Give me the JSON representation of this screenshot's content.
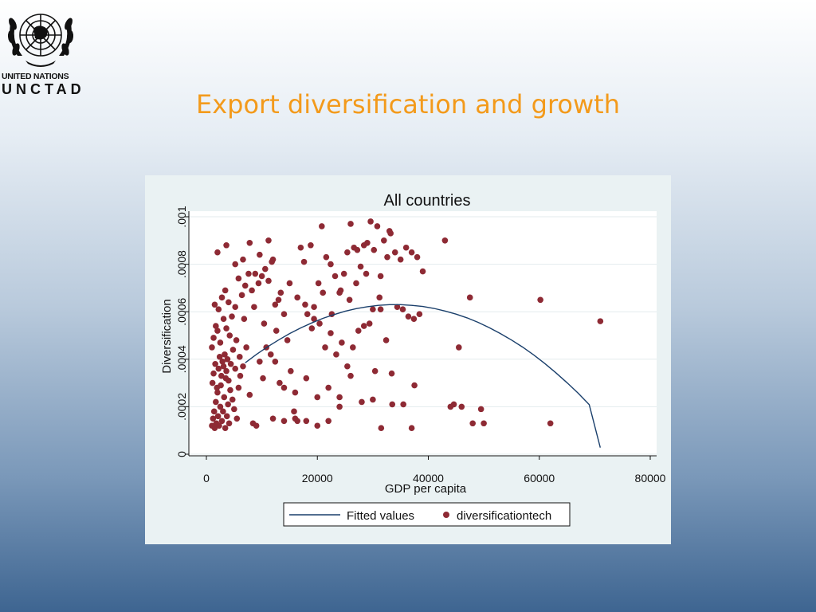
{
  "logo": {
    "org_name": "UNITED NATIONS",
    "acronym": "UNCTAD"
  },
  "slide": {
    "title": "Export diversification and growth"
  },
  "colors": {
    "title": "#f39a1b",
    "frame_bg": "#eaf2f3",
    "fitted_line": "#1a3f6b",
    "scatter": "#8e2a34"
  },
  "chart_data": {
    "type": "scatter",
    "title": "All countries",
    "xlabel": "GDP per capita",
    "ylabel": "Diversification",
    "xlim": [
      0,
      80000
    ],
    "ylim": [
      0,
      0.001
    ],
    "x_ticks": [
      0,
      20000,
      40000,
      60000,
      80000
    ],
    "x_tick_labels": [
      "0",
      "20000",
      "40000",
      "60000",
      "80000"
    ],
    "y_ticks": [
      0,
      0.0002,
      0.0004,
      0.0006,
      0.0008,
      0.001
    ],
    "y_tick_labels": [
      "0",
      ".0002",
      ".0004",
      ".0006",
      ".0008",
      ".001"
    ],
    "grid": "horizontal",
    "legend": {
      "position": "bottom",
      "labels": [
        "Fitted values",
        "diversificationtech"
      ]
    },
    "series": [
      {
        "name": "Fitted values",
        "kind": "line",
        "x": [
          7000,
          9000,
          11000,
          13000,
          15000,
          17000,
          19000,
          21000,
          23000,
          25000,
          27000,
          29000,
          31000,
          33000,
          35000,
          37000,
          39000,
          41000,
          43000,
          45000,
          47000,
          49000,
          51000,
          53000,
          55000,
          57000,
          59000,
          61000,
          63000,
          65000,
          67000,
          69000,
          71000
        ],
        "y": [
          0.000385,
          0.00042,
          0.000452,
          0.000481,
          0.000508,
          0.000532,
          0.000553,
          0.000572,
          0.000588,
          0.000602,
          0.000613,
          0.000621,
          0.000627,
          0.00063,
          0.00063,
          0.000627,
          0.000622,
          0.000614,
          0.000603,
          0.00059,
          0.000574,
          0.000555,
          0.000533,
          0.000508,
          0.000481,
          0.000451,
          0.000418,
          0.000382,
          0.000343,
          0.000301,
          0.000257,
          0.000209,
          2.8e-05
        ]
      },
      {
        "name": "diversificationtech",
        "kind": "scatter",
        "points": [
          [
            1000,
            0.00012
          ],
          [
            1200,
            0.00015
          ],
          [
            1400,
            0.00018
          ],
          [
            1500,
            0.00011
          ],
          [
            1700,
            0.00022
          ],
          [
            1800,
            0.00013
          ],
          [
            2000,
            0.00026
          ],
          [
            2100,
            0.00016
          ],
          [
            2300,
            0.00012
          ],
          [
            2500,
            0.0002
          ],
          [
            2600,
            0.00029
          ],
          [
            2800,
            0.00014
          ],
          [
            3000,
            0.00018
          ],
          [
            3200,
            0.00024
          ],
          [
            3400,
            0.00011
          ],
          [
            3500,
            0.00032
          ],
          [
            3700,
            0.00016
          ],
          [
            3900,
            0.00021
          ],
          [
            4100,
            0.00013
          ],
          [
            4300,
            0.00027
          ],
          [
            1100,
            0.0003
          ],
          [
            1300,
            0.00034
          ],
          [
            1600,
            0.00038
          ],
          [
            1900,
            0.00028
          ],
          [
            2200,
            0.00036
          ],
          [
            2400,
            0.00041
          ],
          [
            2700,
            0.00033
          ],
          [
            2900,
            0.00039
          ],
          [
            3100,
            0.00037
          ],
          [
            3300,
            0.00042
          ],
          [
            3600,
            0.00035
          ],
          [
            3800,
            0.0004
          ],
          [
            4000,
            0.00031
          ],
          [
            4400,
            0.00038
          ],
          [
            4700,
            0.00023
          ],
          [
            5000,
            0.00019
          ],
          [
            5200,
            0.00036
          ],
          [
            5500,
            0.00015
          ],
          [
            5800,
            0.00028
          ],
          [
            6100,
            0.00033
          ],
          [
            1000,
            0.00045
          ],
          [
            1300,
            0.00049
          ],
          [
            1700,
            0.00054
          ],
          [
            2000,
            0.00052
          ],
          [
            2500,
            0.00047
          ],
          [
            3100,
            0.00057
          ],
          [
            3600,
            0.00053
          ],
          [
            4200,
            0.0005
          ],
          [
            4800,
            0.00044
          ],
          [
            5400,
            0.00048
          ],
          [
            6000,
            0.00041
          ],
          [
            6600,
            0.00037
          ],
          [
            7200,
            0.00045
          ],
          [
            7800,
            0.00025
          ],
          [
            8400,
            0.00013
          ],
          [
            9000,
            0.00012
          ],
          [
            9600,
            0.00039
          ],
          [
            10200,
            0.00032
          ],
          [
            1500,
            0.00063
          ],
          [
            2200,
            0.00061
          ],
          [
            2800,
            0.00066
          ],
          [
            3400,
            0.00069
          ],
          [
            4000,
            0.00064
          ],
          [
            4600,
            0.00058
          ],
          [
            5200,
            0.00062
          ],
          [
            5800,
            0.00074
          ],
          [
            6400,
            0.00067
          ],
          [
            7000,
            0.00071
          ],
          [
            7600,
            0.00076
          ],
          [
            8200,
            0.00069
          ],
          [
            8800,
            0.00076
          ],
          [
            9400,
            0.00072
          ],
          [
            10000,
            0.00075
          ],
          [
            10600,
            0.00078
          ],
          [
            11200,
            0.00073
          ],
          [
            11800,
            0.00081
          ],
          [
            12400,
            0.00063
          ],
          [
            13000,
            0.00065
          ],
          [
            2000,
            0.00085
          ],
          [
            3600,
            0.00088
          ],
          [
            5200,
            0.0008
          ],
          [
            6600,
            0.00082
          ],
          [
            7800,
            0.00089
          ],
          [
            9600,
            0.00084
          ],
          [
            11200,
            0.0009
          ],
          [
            12000,
            0.00082
          ],
          [
            13400,
            0.00068
          ],
          [
            14000,
            0.00059
          ],
          [
            14600,
            0.00048
          ],
          [
            15200,
            0.00035
          ],
          [
            15800,
            0.00018
          ],
          [
            16400,
            0.00014
          ],
          [
            17000,
            0.00087
          ],
          [
            17600,
            0.00081
          ],
          [
            18200,
            0.00059
          ],
          [
            18800,
            0.00088
          ],
          [
            19400,
            0.00062
          ],
          [
            20200,
            0.00072
          ],
          [
            10800,
            0.00045
          ],
          [
            11600,
            0.00042
          ],
          [
            12400,
            0.00039
          ],
          [
            13200,
            0.0003
          ],
          [
            14000,
            0.00028
          ],
          [
            16000,
            0.00026
          ],
          [
            18000,
            0.00032
          ],
          [
            20000,
            0.00024
          ],
          [
            22000,
            0.00028
          ],
          [
            24000,
            0.0002
          ],
          [
            12000,
            0.00015
          ],
          [
            14000,
            0.00014
          ],
          [
            16000,
            0.00015
          ],
          [
            18000,
            0.00014
          ],
          [
            20000,
            0.00012
          ],
          [
            22000,
            0.00014
          ],
          [
            24000,
            0.00024
          ],
          [
            26000,
            0.00033
          ],
          [
            28000,
            0.00022
          ],
          [
            30000,
            0.00023
          ],
          [
            20800,
            0.00096
          ],
          [
            21600,
            0.00083
          ],
          [
            22400,
            0.0008
          ],
          [
            23200,
            0.00075
          ],
          [
            24000,
            0.00068
          ],
          [
            24800,
            0.00076
          ],
          [
            25400,
            0.00085
          ],
          [
            26000,
            0.00097
          ],
          [
            26600,
            0.00087
          ],
          [
            27200,
            0.00086
          ],
          [
            27800,
            0.00079
          ],
          [
            28400,
            0.00088
          ],
          [
            29000,
            0.00089
          ],
          [
            29600,
            0.00098
          ],
          [
            30200,
            0.00086
          ],
          [
            30800,
            0.00096
          ],
          [
            31400,
            0.00075
          ],
          [
            32000,
            0.0009
          ],
          [
            32600,
            0.00083
          ],
          [
            33200,
            0.00093
          ],
          [
            19400,
            0.00057
          ],
          [
            20400,
            0.00055
          ],
          [
            21400,
            0.00045
          ],
          [
            22400,
            0.00051
          ],
          [
            23400,
            0.00042
          ],
          [
            24400,
            0.00047
          ],
          [
            25400,
            0.00037
          ],
          [
            26400,
            0.00045
          ],
          [
            27400,
            0.00052
          ],
          [
            28400,
            0.00054
          ],
          [
            29400,
            0.00055
          ],
          [
            30400,
            0.00035
          ],
          [
            31400,
            0.00061
          ],
          [
            32400,
            0.00048
          ],
          [
            33400,
            0.00034
          ],
          [
            34400,
            0.00062
          ],
          [
            35400,
            0.00061
          ],
          [
            36400,
            0.00058
          ],
          [
            37400,
            0.00057
          ],
          [
            38400,
            0.00059
          ],
          [
            33000,
            0.00094
          ],
          [
            34000,
            0.00085
          ],
          [
            35000,
            0.00082
          ],
          [
            36000,
            0.00087
          ],
          [
            37000,
            0.00085
          ],
          [
            38000,
            0.00083
          ],
          [
            39000,
            0.00077
          ],
          [
            31500,
            0.00011
          ],
          [
            33500,
            0.00021
          ],
          [
            35500,
            0.00021
          ],
          [
            37500,
            0.00029
          ],
          [
            37000,
            0.00011
          ],
          [
            43000,
            0.0009
          ],
          [
            44000,
            0.0002
          ],
          [
            44600,
            0.00021
          ],
          [
            45500,
            0.00045
          ],
          [
            46000,
            0.0002
          ],
          [
            47500,
            0.00066
          ],
          [
            48000,
            0.00013
          ],
          [
            49500,
            0.00019
          ],
          [
            50000,
            0.00013
          ],
          [
            60200,
            0.00065
          ],
          [
            62000,
            0.00013
          ],
          [
            71000,
            0.00056
          ],
          [
            15000,
            0.00072
          ],
          [
            16400,
            0.00066
          ],
          [
            17800,
            0.00063
          ],
          [
            19000,
            0.00053
          ],
          [
            21000,
            0.00068
          ],
          [
            22600,
            0.00059
          ],
          [
            24200,
            0.00069
          ],
          [
            25800,
            0.00065
          ],
          [
            27000,
            0.00072
          ],
          [
            28800,
            0.00076
          ],
          [
            30000,
            0.00061
          ],
          [
            31200,
            0.00066
          ],
          [
            6800,
            0.00057
          ],
          [
            8600,
            0.00062
          ],
          [
            10400,
            0.00055
          ],
          [
            12600,
            0.00052
          ]
        ]
      }
    ]
  }
}
